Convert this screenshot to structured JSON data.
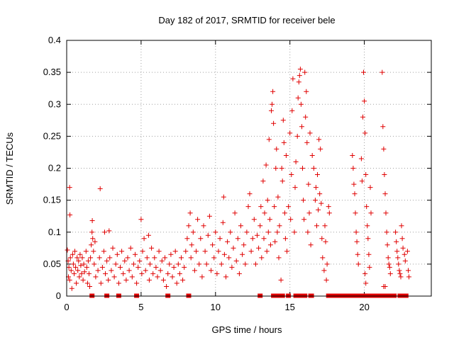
{
  "chart_data": {
    "type": "scatter",
    "title": "Day 182 of 2017, SRMTID for receiver bele",
    "xlabel": "GPS time / hours",
    "ylabel": "SRMTID / TECUs",
    "xlim": [
      0,
      24.5
    ],
    "ylim": [
      0,
      0.4
    ],
    "xticks": [
      0,
      5,
      10,
      15,
      20
    ],
    "yticks": [
      0,
      0.05,
      0.1,
      0.15,
      0.2,
      0.25,
      0.3,
      0.35,
      0.4
    ],
    "ytick_labels": [
      "0",
      "0.05",
      "0.1",
      "0.15",
      "0.2",
      "0.25",
      "0.3",
      "0.35",
      "0.4"
    ],
    "grid": true,
    "marker": "plus",
    "color": "#e00000",
    "series": [
      {
        "name": "SRMTID",
        "points": [
          [
            0.05,
            0.072
          ],
          [
            0.1,
            0.055
          ],
          [
            0.12,
            0.03
          ],
          [
            0.15,
            0.045
          ],
          [
            0.2,
            0.025
          ],
          [
            0.2,
            0.17
          ],
          [
            0.22,
            0.127
          ],
          [
            0.25,
            0.06
          ],
          [
            0.3,
            0.04
          ],
          [
            0.35,
            0.012
          ],
          [
            0.4,
            0.065
          ],
          [
            0.45,
            0.05
          ],
          [
            0.5,
            0.035
          ],
          [
            0.55,
            0.07
          ],
          [
            0.6,
            0.045
          ],
          [
            0.65,
            0.02
          ],
          [
            0.7,
            0.06
          ],
          [
            0.75,
            0.04
          ],
          [
            0.8,
            0.055
          ],
          [
            0.85,
            0.03
          ],
          [
            0.9,
            0.065
          ],
          [
            0.95,
            0.048
          ],
          [
            1.0,
            0.035
          ],
          [
            1.05,
            0.06
          ],
          [
            1.1,
            0.025
          ],
          [
            1.15,
            0.05
          ],
          [
            1.2,
            0.038
          ],
          [
            1.3,
            0.07
          ],
          [
            1.35,
            0.045
          ],
          [
            1.4,
            0.02
          ],
          [
            1.45,
            0.055
          ],
          [
            1.5,
            0.035
          ],
          [
            1.55,
            0.015
          ],
          [
            1.6,
            0.06
          ],
          [
            1.65,
            0.08
          ],
          [
            1.7,
            0.1
          ],
          [
            1.72,
            0.118
          ],
          [
            1.75,
            0.09
          ],
          [
            1.8,
            0.07
          ],
          [
            1.85,
            0.05
          ],
          [
            1.9,
            0.085
          ],
          [
            1.95,
            0.03
          ],
          [
            2.1,
            0.04
          ],
          [
            2.2,
            0.06
          ],
          [
            2.25,
            0.168
          ],
          [
            2.3,
            0.02
          ],
          [
            2.4,
            0.045
          ],
          [
            2.5,
            0.07
          ],
          [
            2.55,
            0.1
          ],
          [
            2.6,
            0.035
          ],
          [
            2.7,
            0.055
          ],
          [
            2.8,
            0.025
          ],
          [
            2.85,
            0.102
          ],
          [
            2.9,
            0.06
          ],
          [
            3.0,
            0.04
          ],
          [
            3.1,
            0.075
          ],
          [
            3.2,
            0.03
          ],
          [
            3.3,
            0.05
          ],
          [
            3.4,
            0.065
          ],
          [
            3.5,
            0.02
          ],
          [
            3.6,
            0.045
          ],
          [
            3.7,
            0.07
          ],
          [
            3.8,
            0.035
          ],
          [
            3.9,
            0.055
          ],
          [
            4.0,
            0.025
          ],
          [
            4.1,
            0.06
          ],
          [
            4.2,
            0.04
          ],
          [
            4.3,
            0.075
          ],
          [
            4.4,
            0.03
          ],
          [
            4.5,
            0.05
          ],
          [
            4.6,
            0.065
          ],
          [
            4.7,
            0.02
          ],
          [
            4.8,
            0.045
          ],
          [
            4.9,
            0.055
          ],
          [
            5.0,
            0.12
          ],
          [
            5.05,
            0.035
          ],
          [
            5.1,
            0.07
          ],
          [
            5.2,
            0.09
          ],
          [
            5.3,
            0.04
          ],
          [
            5.4,
            0.06
          ],
          [
            5.5,
            0.095
          ],
          [
            5.55,
            0.025
          ],
          [
            5.6,
            0.05
          ],
          [
            5.7,
            0.075
          ],
          [
            5.8,
            0.035
          ],
          [
            5.9,
            0.06
          ],
          [
            6.0,
            0.045
          ],
          [
            6.1,
            0.03
          ],
          [
            6.2,
            0.07
          ],
          [
            6.3,
            0.04
          ],
          [
            6.4,
            0.055
          ],
          [
            6.5,
            0.025
          ],
          [
            6.6,
            0.06
          ],
          [
            6.7,
            0.015
          ],
          [
            6.8,
            0.035
          ],
          [
            6.9,
            0.05
          ],
          [
            7.0,
            0.065
          ],
          [
            7.1,
            0.03
          ],
          [
            7.2,
            0.045
          ],
          [
            7.3,
            0.07
          ],
          [
            7.4,
            0.02
          ],
          [
            7.5,
            0.05
          ],
          [
            7.6,
            0.035
          ],
          [
            7.7,
            0.06
          ],
          [
            7.8,
            0.025
          ],
          [
            7.9,
            0.045
          ],
          [
            8.0,
            0.07
          ],
          [
            8.1,
            0.09
          ],
          [
            8.2,
            0.11
          ],
          [
            8.3,
            0.13
          ],
          [
            8.35,
            0.06
          ],
          [
            8.4,
            0.08
          ],
          [
            8.5,
            0.1
          ],
          [
            8.6,
            0.04
          ],
          [
            8.7,
            0.07
          ],
          [
            8.8,
            0.12
          ],
          [
            8.9,
            0.05
          ],
          [
            9.0,
            0.09
          ],
          [
            9.1,
            0.03
          ],
          [
            9.2,
            0.11
          ],
          [
            9.3,
            0.07
          ],
          [
            9.4,
            0.05
          ],
          [
            9.5,
            0.095
          ],
          [
            9.6,
            0.125
          ],
          [
            9.7,
            0.04
          ],
          [
            9.8,
            0.08
          ],
          [
            9.9,
            0.06
          ],
          [
            10.0,
            0.1
          ],
          [
            10.1,
            0.035
          ],
          [
            10.2,
            0.07
          ],
          [
            10.3,
            0.09
          ],
          [
            10.4,
            0.05
          ],
          [
            10.5,
            0.115
          ],
          [
            10.55,
            0.155
          ],
          [
            10.6,
            0.065
          ],
          [
            10.7,
            0.03
          ],
          [
            10.8,
            0.085
          ],
          [
            10.9,
            0.06
          ],
          [
            11.0,
            0.1
          ],
          [
            11.1,
            0.045
          ],
          [
            11.2,
            0.075
          ],
          [
            11.3,
            0.13
          ],
          [
            11.4,
            0.055
          ],
          [
            11.5,
            0.09
          ],
          [
            11.6,
            0.035
          ],
          [
            11.7,
            0.11
          ],
          [
            11.8,
            0.065
          ],
          [
            11.9,
            0.08
          ],
          [
            12.0,
            0.05
          ],
          [
            12.1,
            0.1
          ],
          [
            12.2,
            0.14
          ],
          [
            12.3,
            0.16
          ],
          [
            12.4,
            0.07
          ],
          [
            12.5,
            0.09
          ],
          [
            12.6,
            0.12
          ],
          [
            12.7,
            0.05
          ],
          [
            12.8,
            0.095
          ],
          [
            12.9,
            0.075
          ],
          [
            13.0,
            0.11
          ],
          [
            13.05,
            0.14
          ],
          [
            13.1,
            0.06
          ],
          [
            13.2,
            0.18
          ],
          [
            13.25,
            0.09
          ],
          [
            13.3,
            0.13
          ],
          [
            13.4,
            0.205
          ],
          [
            13.45,
            0.07
          ],
          [
            13.5,
            0.15
          ],
          [
            13.55,
            0.1
          ],
          [
            13.6,
            0.245
          ],
          [
            13.65,
            0.12
          ],
          [
            13.7,
            0.08
          ],
          [
            13.75,
            0.29
          ],
          [
            13.8,
            0.3
          ],
          [
            13.85,
            0.32
          ],
          [
            13.9,
            0.27
          ],
          [
            13.95,
            0.14
          ],
          [
            14.0,
            0.085
          ],
          [
            14.05,
            0.2
          ],
          [
            14.1,
            0.23
          ],
          [
            14.15,
            0.1
          ],
          [
            14.2,
            0.155
          ],
          [
            14.25,
            0.06
          ],
          [
            14.3,
            0.11
          ],
          [
            14.4,
            0.025
          ],
          [
            14.45,
            0.2
          ],
          [
            14.5,
            0.18
          ],
          [
            14.55,
            0.275
          ],
          [
            14.6,
            0.24
          ],
          [
            14.65,
            0.13
          ],
          [
            14.7,
            0.09
          ],
          [
            14.75,
            0.22
          ],
          [
            14.8,
            0.07
          ],
          [
            14.9,
            0.14
          ],
          [
            15.0,
            0.255
          ],
          [
            15.05,
            0.12
          ],
          [
            15.1,
            0.19
          ],
          [
            15.15,
            0.29
          ],
          [
            15.2,
            0.34
          ],
          [
            15.3,
            0.1
          ],
          [
            15.35,
            0.17
          ],
          [
            15.4,
            0.21
          ],
          [
            15.5,
            0.25
          ],
          [
            15.55,
            0.31
          ],
          [
            15.6,
            0.335
          ],
          [
            15.65,
            0.345
          ],
          [
            15.7,
            0.355
          ],
          [
            15.75,
            0.3
          ],
          [
            15.8,
            0.265
          ],
          [
            15.85,
            0.2
          ],
          [
            15.9,
            0.15
          ],
          [
            15.95,
            0.12
          ],
          [
            16.0,
            0.35
          ],
          [
            16.05,
            0.28
          ],
          [
            16.1,
            0.32
          ],
          [
            16.15,
            0.24
          ],
          [
            16.2,
            0.1
          ],
          [
            16.25,
            0.175
          ],
          [
            16.3,
            0.13
          ],
          [
            16.35,
            0.255
          ],
          [
            16.4,
            0.08
          ],
          [
            16.5,
            0.22
          ],
          [
            16.6,
            0.2
          ],
          [
            16.7,
            0.15
          ],
          [
            16.75,
            0.17
          ],
          [
            16.8,
            0.11
          ],
          [
            16.85,
            0.19
          ],
          [
            16.9,
            0.135
          ],
          [
            16.95,
            0.245
          ],
          [
            17.0,
            0.16
          ],
          [
            17.05,
            0.23
          ],
          [
            17.1,
            0.145
          ],
          [
            17.15,
            0.09
          ],
          [
            17.2,
            0.06
          ],
          [
            17.3,
            0.04
          ],
          [
            17.35,
            0.11
          ],
          [
            17.4,
            0.085
          ],
          [
            17.45,
            0.025
          ],
          [
            17.5,
            0.05
          ],
          [
            17.6,
            0.14
          ],
          [
            17.65,
            0.13
          ],
          [
            19.2,
            0.22
          ],
          [
            19.25,
            0.2
          ],
          [
            19.3,
            0.175
          ],
          [
            19.35,
            0.16
          ],
          [
            19.4,
            0.13
          ],
          [
            19.45,
            0.1
          ],
          [
            19.5,
            0.085
          ],
          [
            19.55,
            0.065
          ],
          [
            19.6,
            0.05
          ],
          [
            19.8,
            0.215
          ],
          [
            19.85,
            0.18
          ],
          [
            19.9,
            0.28
          ],
          [
            19.95,
            0.35
          ],
          [
            20.0,
            0.305
          ],
          [
            20.05,
            0.255
          ],
          [
            20.1,
            0.19
          ],
          [
            20.15,
            0.14
          ],
          [
            20.2,
            0.11
          ],
          [
            20.25,
            0.09
          ],
          [
            20.3,
            0.065
          ],
          [
            20.35,
            0.045
          ],
          [
            20.05,
            0.035
          ],
          [
            20.1,
            0.02
          ],
          [
            20.4,
            0.17
          ],
          [
            20.45,
            0.13
          ],
          [
            21.2,
            0.35
          ],
          [
            21.25,
            0.265
          ],
          [
            21.3,
            0.23
          ],
          [
            21.35,
            0.19
          ],
          [
            21.4,
            0.16
          ],
          [
            21.45,
            0.13
          ],
          [
            21.5,
            0.1
          ],
          [
            21.55,
            0.08
          ],
          [
            21.6,
            0.06
          ],
          [
            21.65,
            0.05
          ],
          [
            21.3,
            0.015
          ],
          [
            21.4,
            0.015
          ],
          [
            21.7,
            0.045
          ],
          [
            21.75,
            0.035
          ],
          [
            22.1,
            0.1
          ],
          [
            22.15,
            0.085
          ],
          [
            22.2,
            0.07
          ],
          [
            22.25,
            0.06
          ],
          [
            22.3,
            0.05
          ],
          [
            22.35,
            0.04
          ],
          [
            22.4,
            0.035
          ],
          [
            22.45,
            0.03
          ],
          [
            22.5,
            0.11
          ],
          [
            22.55,
            0.09
          ],
          [
            22.6,
            0.075
          ],
          [
            22.7,
            0.065
          ],
          [
            22.75,
            0.055
          ],
          [
            22.9,
            0.07
          ],
          [
            22.95,
            0.04
          ],
          [
            23.0,
            0.03
          ]
        ]
      }
    ],
    "zero_markers_x": [
      1.7,
      2.7,
      3.5,
      4.7,
      6.8,
      8.2,
      13.0,
      13.9,
      14.0,
      14.3,
      14.5,
      14.9,
      15.4,
      15.5,
      15.55,
      15.6,
      15.8,
      16.0,
      16.4,
      16.45,
      17.6,
      17.8,
      17.85,
      18.0,
      18.1,
      18.25,
      18.4,
      18.5,
      18.7,
      18.8,
      18.9,
      19.0,
      19.2,
      19.35,
      19.5,
      19.6,
      19.9,
      20.0,
      20.1,
      20.4,
      20.6,
      20.7,
      20.8,
      20.85,
      20.95,
      21.0,
      21.1,
      21.2,
      21.3,
      21.5,
      21.6,
      21.75,
      21.9,
      22.0,
      22.4,
      22.5,
      22.7,
      22.8
    ]
  }
}
